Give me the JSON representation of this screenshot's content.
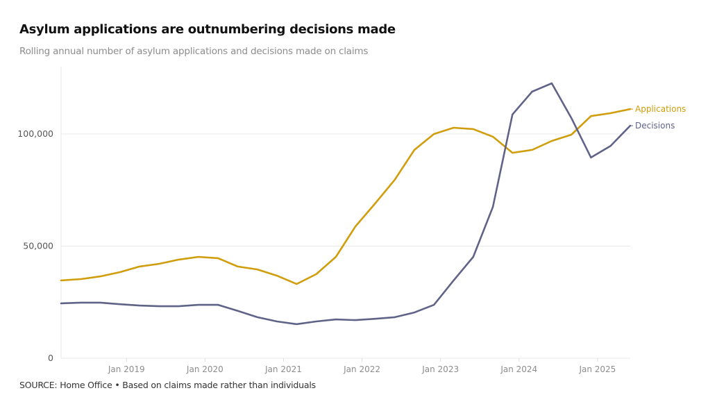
{
  "header": {
    "title": "Asylum applications are outnumbering decisions made",
    "subtitle": "Rolling annual number of asylum applications and decisions made on claims"
  },
  "footer": {
    "source": "SOURCE: Home Office • Based on claims made rather than individuals"
  },
  "chart_data": {
    "type": "line",
    "title": "Asylum applications are outnumbering decisions made",
    "subtitle": "Rolling annual number of asylum applications and decisions made on claims",
    "xlabel": "",
    "ylabel": "",
    "ylim": [
      0,
      130000
    ],
    "yticks": [
      0,
      50000,
      100000
    ],
    "ytick_labels": [
      "0",
      "50,000",
      "100,000"
    ],
    "xticks": [
      "Jan 2019",
      "Jan 2020",
      "Jan 2021",
      "Jan 2022",
      "Jan 2023",
      "Jan 2024",
      "Jan 2025"
    ],
    "x": [
      "Mar 2018",
      "Jun 2018",
      "Sep 2018",
      "Dec 2018",
      "Mar 2019",
      "Jun 2019",
      "Sep 2019",
      "Dec 2019",
      "Mar 2020",
      "Jun 2020",
      "Sep 2020",
      "Dec 2020",
      "Mar 2021",
      "Jun 2021",
      "Sep 2021",
      "Dec 2021",
      "Mar 2022",
      "Jun 2022",
      "Sep 2022",
      "Dec 2022",
      "Mar 2023",
      "Jun 2023",
      "Sep 2023",
      "Dec 2023",
      "Mar 2024",
      "Jun 2024",
      "Sep 2024",
      "Dec 2024",
      "Mar 2025",
      "Jun 2025"
    ],
    "grid": "horizontal",
    "legend": "inline-right",
    "series": [
      {
        "name": "Applications",
        "color": "#d09d0c",
        "values": [
          34700,
          35300,
          36500,
          38400,
          40900,
          42100,
          44000,
          45200,
          44600,
          40900,
          39600,
          36800,
          33100,
          37500,
          45200,
          58800,
          69000,
          79600,
          92900,
          100000,
          102800,
          102200,
          98800,
          91600,
          92900,
          96900,
          99700,
          108000,
          109300,
          111100
        ]
      },
      {
        "name": "Decisions",
        "color": "#5f6388",
        "values": [
          24500,
          24800,
          24800,
          24100,
          23500,
          23200,
          23200,
          23800,
          23800,
          21100,
          18300,
          16400,
          15200,
          16400,
          17300,
          17000,
          17600,
          18300,
          20400,
          23800,
          34700,
          45200,
          67500,
          108700,
          118900,
          122600,
          107100,
          89500,
          94700,
          103700
        ]
      }
    ]
  }
}
